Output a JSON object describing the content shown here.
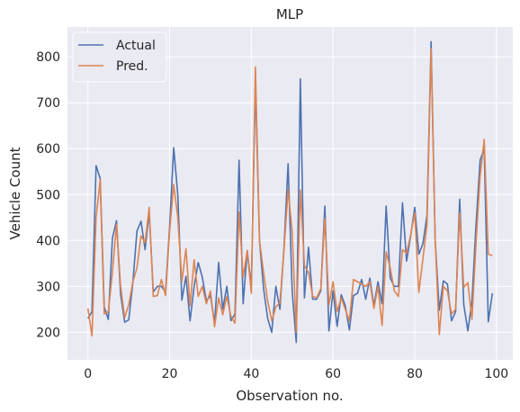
{
  "chart_data": {
    "type": "line",
    "title": "MLP",
    "xlabel": "Observation no.",
    "ylabel": "Vehicle Count",
    "xlim": [
      -5,
      104
    ],
    "ylim": [
      140,
      865
    ],
    "xticks": [
      0,
      20,
      40,
      60,
      80,
      100
    ],
    "yticks": [
      200,
      300,
      400,
      500,
      600,
      700,
      800
    ],
    "grid": true,
    "legend_position": "top-left",
    "series": [
      {
        "name": "Actual",
        "color": "#4c72b0",
        "values": [
          230,
          245,
          563,
          535,
          255,
          228,
          405,
          443,
          283,
          222,
          227,
          308,
          420,
          442,
          380,
          462,
          288,
          300,
          300,
          288,
          430,
          602,
          500,
          270,
          322,
          225,
          300,
          352,
          320,
          268,
          280,
          220,
          352,
          250,
          300,
          225,
          240,
          575,
          262,
          378,
          300,
          745,
          400,
          295,
          230,
          200,
          300,
          250,
          385,
          567,
          290,
          178,
          752,
          275,
          385,
          272,
          272,
          290,
          475,
          203,
          290,
          213,
          282,
          258,
          205,
          280,
          285,
          315,
          272,
          318,
          258,
          310,
          262,
          475,
          318,
          300,
          300,
          482,
          355,
          410,
          472,
          370,
          393,
          455,
          833,
          400,
          248,
          312,
          305,
          225,
          245,
          490,
          260,
          203,
          268,
          435,
          575,
          600,
          223,
          285
        ]
      },
      {
        "name": "Pred.",
        "color": "#dd8452",
        "values": [
          252,
          192,
          450,
          532,
          240,
          245,
          330,
          435,
          300,
          232,
          260,
          310,
          340,
          410,
          395,
          472,
          278,
          280,
          315,
          280,
          420,
          522,
          450,
          310,
          382,
          258,
          358,
          278,
          300,
          262,
          290,
          212,
          275,
          238,
          278,
          235,
          220,
          462,
          320,
          378,
          285,
          778,
          400,
          330,
          268,
          225,
          255,
          265,
          380,
          510,
          420,
          200,
          510,
          345,
          330,
          278,
          275,
          295,
          448,
          260,
          310,
          245,
          275,
          250,
          225,
          315,
          310,
          305,
          300,
          310,
          252,
          300,
          215,
          375,
          340,
          290,
          278,
          380,
          372,
          412,
          460,
          287,
          360,
          435,
          818,
          402,
          195,
          300,
          290,
          240,
          250,
          460,
          298,
          308,
          228,
          395,
          540,
          620,
          370,
          367
        ]
      }
    ]
  }
}
